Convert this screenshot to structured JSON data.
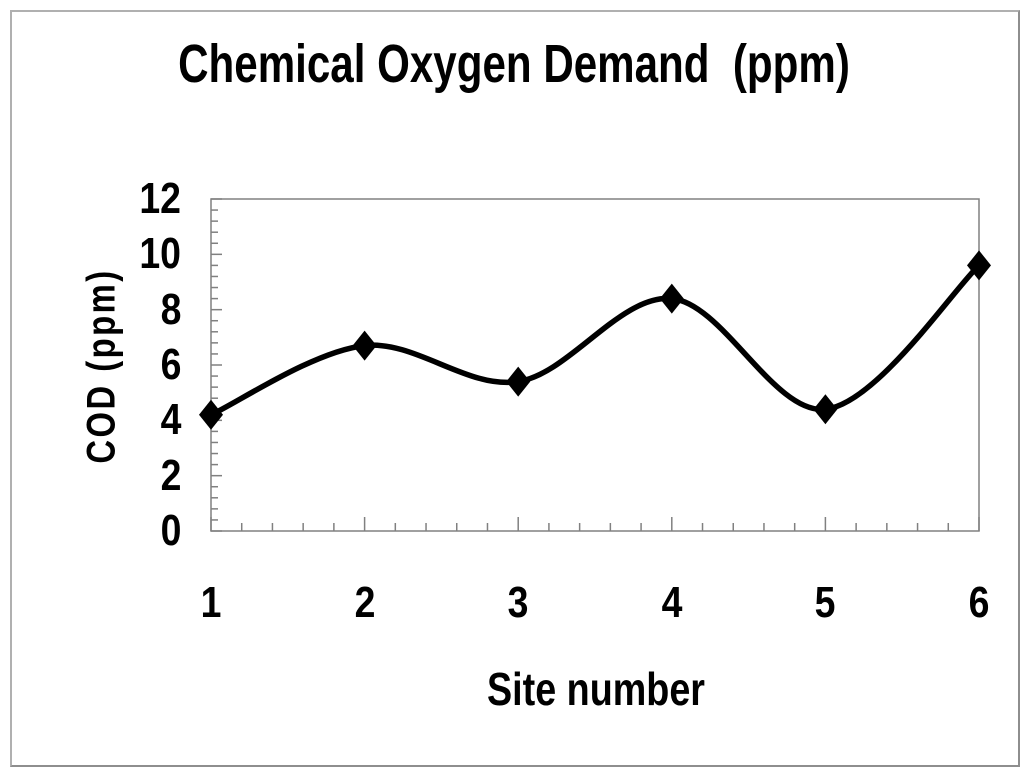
{
  "frame": {
    "border_color": "#9e9e9e",
    "background_color": "#ffffff"
  },
  "chart_data": {
    "type": "line",
    "title": "Chemical Oxygen Demand  (ppm)",
    "xlabel": "Site number",
    "ylabel": "COD (ppm)",
    "categories": [
      "1",
      "2",
      "3",
      "4",
      "5",
      "6"
    ],
    "series": [
      {
        "name": "COD",
        "values": [
          4.2,
          6.7,
          5.4,
          8.4,
          4.4,
          9.6
        ]
      }
    ],
    "ylim": [
      0,
      12
    ],
    "y_major_step": 2,
    "y_minor_step": 0.4,
    "x_minor_divisions": 5,
    "y_tick_labels": [
      "0",
      "2",
      "4",
      "6",
      "8",
      "10",
      "12"
    ],
    "smoothed": true,
    "marker": "diamond",
    "line_color": "#000000",
    "marker_color": "#000000",
    "axis_color": "#808080",
    "text_color": "#000000",
    "grid": false,
    "legend": "none"
  }
}
